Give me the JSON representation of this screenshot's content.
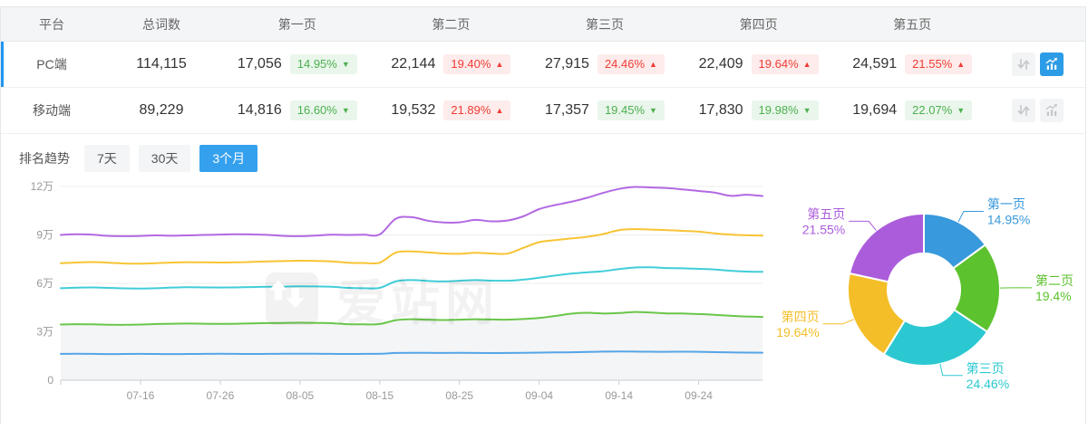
{
  "colors": {
    "accent": "#35a1ee",
    "accent_btn": "#2d9ce6",
    "row_indicator": "#2196f3",
    "badge_green": "#4cb050",
    "badge_green_bg": "#eaf6eb",
    "badge_red": "#f03c36",
    "badge_red_bg": "#fdeceb",
    "icon_gray": "#c3c8cc",
    "icon_bg": "#f3f4f5"
  },
  "table": {
    "columns": [
      "平台",
      "总词数",
      "第一页",
      "第二页",
      "第三页",
      "第四页",
      "第五页"
    ],
    "rows": [
      {
        "platform": "PC端",
        "total": "114,115",
        "row_state": "selected",
        "chart_btn": "active",
        "pages": [
          {
            "count": "17,056",
            "pct": "14.95%",
            "arrow": "▼",
            "tone": "green"
          },
          {
            "count": "22,144",
            "pct": "19.40%",
            "arrow": "▲",
            "tone": "red"
          },
          {
            "count": "27,915",
            "pct": "24.46%",
            "arrow": "▲",
            "tone": "red"
          },
          {
            "count": "22,409",
            "pct": "19.64%",
            "arrow": "▲",
            "tone": "red"
          },
          {
            "count": "24,591",
            "pct": "21.55%",
            "arrow": "▲",
            "tone": "red"
          }
        ]
      },
      {
        "platform": "移动端",
        "total": "89,229",
        "row_state": "",
        "chart_btn": "",
        "pages": [
          {
            "count": "14,816",
            "pct": "16.60%",
            "arrow": "▼",
            "tone": "green"
          },
          {
            "count": "19,532",
            "pct": "21.89%",
            "arrow": "▲",
            "tone": "red"
          },
          {
            "count": "17,357",
            "pct": "19.45%",
            "arrow": "▼",
            "tone": "green"
          },
          {
            "count": "17,830",
            "pct": "19.98%",
            "arrow": "▼",
            "tone": "green"
          },
          {
            "count": "19,694",
            "pct": "22.07%",
            "arrow": "▼",
            "tone": "green"
          }
        ]
      }
    ]
  },
  "trend": {
    "label": "排名趋势",
    "tabs": [
      "7天",
      "30天",
      "3个月"
    ],
    "tab_states": [
      "",
      "",
      "active"
    ],
    "active_tab": "3个月",
    "watermark": "爱站网"
  },
  "chart_data": [
    {
      "type": "line",
      "ylim": [
        0,
        120000
      ],
      "y_tick_values": [
        0,
        30000,
        60000,
        90000,
        120000
      ],
      "y_tick_labels": [
        "0",
        "3万",
        "6万",
        "9万",
        "12万"
      ],
      "x": [
        "07-06",
        "07-08",
        "07-10",
        "07-12",
        "07-14",
        "07-16",
        "07-18",
        "07-20",
        "07-22",
        "07-24",
        "07-26",
        "07-28",
        "07-30",
        "08-01",
        "08-03",
        "08-05",
        "08-07",
        "08-09",
        "08-11",
        "08-13",
        "08-15",
        "08-17",
        "08-19",
        "08-21",
        "08-23",
        "08-25",
        "08-27",
        "08-29",
        "08-31",
        "09-02",
        "09-04",
        "09-06",
        "09-08",
        "09-10",
        "09-12",
        "09-14",
        "09-16",
        "09-18",
        "09-20",
        "09-22",
        "09-24",
        "09-26",
        "09-28",
        "09-30",
        "10-02"
      ],
      "x_tick_indices": [
        5,
        10,
        15,
        20,
        25,
        30,
        35,
        40
      ],
      "grid": true,
      "grid_color": "#ececec",
      "axis_color": "#c9ccd0",
      "label_color": "#999999",
      "area_under_series": "第二页",
      "area_fill": "#f4f5f6",
      "legend_position": "none",
      "series": [
        {
          "name": "第一页",
          "color": "#55a5e7",
          "values": [
            16300,
            16400,
            16300,
            16200,
            16250,
            16300,
            16250,
            16200,
            16250,
            16300,
            16350,
            16300,
            16250,
            16300,
            16350,
            16400,
            16350,
            16300,
            16250,
            16300,
            16350,
            16900,
            17000,
            16950,
            16900,
            16950,
            16900,
            16850,
            16900,
            17000,
            17100,
            17200,
            17300,
            17500,
            17700,
            17750,
            17700,
            17650,
            17600,
            17650,
            17600,
            17400,
            17200,
            17100,
            17056
          ]
        },
        {
          "name": "第二页",
          "color": "#6ac64a",
          "values": [
            34500,
            34700,
            34600,
            34400,
            34300,
            34500,
            34800,
            35000,
            35100,
            35000,
            34900,
            35000,
            35200,
            35400,
            35500,
            35600,
            35500,
            35300,
            34700,
            34600,
            34800,
            37200,
            37800,
            37500,
            37300,
            37500,
            37800,
            37600,
            37500,
            37900,
            38600,
            39800,
            41200,
            41800,
            41300,
            41600,
            42300,
            41900,
            41400,
            41300,
            41000,
            40500,
            39900,
            39500,
            39200
          ]
        },
        {
          "name": "第三页",
          "color": "#41cdd9",
          "values": [
            57000,
            57300,
            57500,
            57200,
            56900,
            56800,
            57000,
            57400,
            57600,
            57500,
            57400,
            57500,
            57700,
            57900,
            58000,
            58200,
            58100,
            57900,
            57200,
            57000,
            57200,
            61200,
            62000,
            61500,
            61200,
            61600,
            62000,
            61700,
            61600,
            62300,
            63500,
            64800,
            66000,
            66800,
            67500,
            68800,
            69800,
            69900,
            69500,
            69300,
            69000,
            68600,
            67800,
            67300,
            67115
          ]
        },
        {
          "name": "第四页",
          "color": "#f7c434",
          "values": [
            72500,
            72900,
            73200,
            72800,
            72300,
            72200,
            72500,
            72900,
            73100,
            73000,
            72900,
            73000,
            73300,
            73600,
            73800,
            74000,
            73900,
            73600,
            72800,
            72600,
            72800,
            79000,
            79800,
            79200,
            78500,
            78300,
            78900,
            78500,
            78400,
            82000,
            85500,
            86800,
            87800,
            88800,
            90500,
            93000,
            93600,
            93300,
            93000,
            92500,
            92000,
            91000,
            90200,
            89800,
            89524
          ]
        },
        {
          "name": "第五页",
          "color": "#b269e2",
          "values": [
            90000,
            90400,
            90100,
            89400,
            89200,
            89400,
            89700,
            89500,
            89700,
            90000,
            90200,
            90400,
            90300,
            90000,
            89400,
            89200,
            89600,
            90100,
            90000,
            90100,
            90300,
            100000,
            101000,
            98800,
            97700,
            97800,
            99300,
            98400,
            98900,
            101500,
            106000,
            108500,
            110500,
            113000,
            116000,
            118500,
            119700,
            119400,
            119000,
            118200,
            117200,
            116200,
            114200,
            114900,
            114115
          ]
        }
      ]
    },
    {
      "type": "pie",
      "donut": true,
      "slices": [
        {
          "label": "第一页",
          "value": 14.95,
          "pct_label": "14.95%",
          "color": "#3899dc"
        },
        {
          "label": "第二页",
          "value": 19.4,
          "pct_label": "19.4%",
          "color": "#5cc22e"
        },
        {
          "label": "第三页",
          "value": 24.46,
          "pct_label": "24.46%",
          "color": "#2cc8d2"
        },
        {
          "label": "第四页",
          "value": 19.64,
          "pct_label": "19.64%",
          "color": "#f4be28"
        },
        {
          "label": "第五页",
          "value": 21.55,
          "pct_label": "21.55%",
          "color": "#ab5cdb"
        }
      ]
    }
  ]
}
